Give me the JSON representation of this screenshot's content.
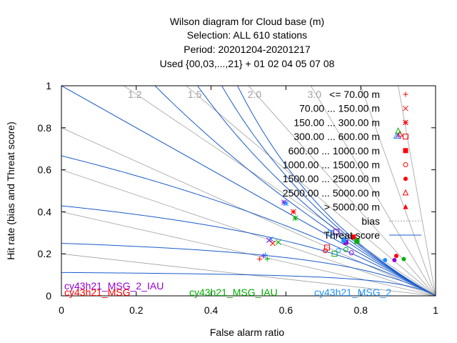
{
  "chart_data": {
    "type": "scatter",
    "title_lines": [
      "Wilson diagram  for Cloud base (m)",
      "Selection: ALL     610 stations",
      "Period: 20201204-20201217",
      "Used {00,03,...,21} + 01 02 04 05 07 08"
    ],
    "xlabel": "False alarm ratio",
    "ylabel": "Hit rate (bias and Threat score)",
    "xlim": [
      0,
      1
    ],
    "ylim": [
      0,
      1
    ],
    "xticks": [
      "0",
      "0.2",
      "0.4",
      "0.6",
      "0.8",
      "1"
    ],
    "yticks": [
      "0",
      "0.2",
      "0.4",
      "0.6",
      "0.8",
      "1"
    ],
    "bias_lines": [
      1.2,
      1.5,
      2.0,
      3.0
    ],
    "bias_labels": [
      "1.2",
      "1.5",
      "2.0",
      "3.0"
    ],
    "threat_score_lines": [
      0.1,
      0.2,
      0.3,
      0.4,
      0.5,
      0.6,
      0.7,
      0.8,
      0.9
    ],
    "legend": {
      "position": "top-right",
      "entries": [
        "<= 70.00 m",
        "70.00 ... 150.00 m",
        "150.00 ... 300.00 m",
        "300.00 ... 600.00 m",
        "600.00 ... 1000.00 m",
        "1000.00 ... 1500.00 m",
        "1500.00 ... 2500.00 m",
        "2500.00 ... 5000.00 m",
        "> 5000.00 m",
        "bias",
        "Threat score"
      ]
    },
    "series": [
      {
        "name": "cy43h21_MSG_2_IAU",
        "color": "#9400d3",
        "points": [
          {
            "x": 0.54,
            "y": 0.19
          },
          {
            "x": 0.555,
            "y": 0.265
          },
          {
            "x": 0.595,
            "y": 0.445
          },
          {
            "x": 0.735,
            "y": 0.305
          },
          {
            "x": 0.76,
            "y": 0.255
          },
          {
            "x": 0.775,
            "y": 0.205
          },
          {
            "x": 0.89,
            "y": 0.17
          },
          {
            "x": 0.9,
            "y": 0.76
          }
        ]
      },
      {
        "name": "cy43h21_MSG",
        "color": "#ff0000",
        "points": [
          {
            "x": 0.53,
            "y": 0.175
          },
          {
            "x": 0.565,
            "y": 0.25
          },
          {
            "x": 0.62,
            "y": 0.4
          },
          {
            "x": 0.71,
            "y": 0.23
          },
          {
            "x": 0.78,
            "y": 0.28
          },
          {
            "x": 0.705,
            "y": 0.215
          },
          {
            "x": 0.895,
            "y": 0.19
          },
          {
            "x": 0.905,
            "y": 0.77
          }
        ]
      },
      {
        "name": "cy43h21_MSG_IAU",
        "color": "#00b000",
        "points": [
          {
            "x": 0.55,
            "y": 0.175
          },
          {
            "x": 0.58,
            "y": 0.255
          },
          {
            "x": 0.625,
            "y": 0.37
          },
          {
            "x": 0.73,
            "y": 0.2
          },
          {
            "x": 0.79,
            "y": 0.26
          },
          {
            "x": 0.76,
            "y": 0.22
          },
          {
            "x": 0.915,
            "y": 0.175
          },
          {
            "x": 0.9,
            "y": 0.785
          }
        ]
      },
      {
        "name": "cy43h21_MSG_2",
        "color": "#1e90ff",
        "points": [
          {
            "x": 0.545,
            "y": 0.195
          },
          {
            "x": 0.56,
            "y": 0.27
          },
          {
            "x": 0.6,
            "y": 0.44
          },
          {
            "x": 0.72,
            "y": 0.3
          },
          {
            "x": 0.755,
            "y": 0.265
          },
          {
            "x": 0.74,
            "y": 0.215
          },
          {
            "x": 0.865,
            "y": 0.17
          },
          {
            "x": 0.895,
            "y": 0.76
          }
        ]
      }
    ]
  },
  "colors": {
    "bias_line": "#a0a0a0",
    "threat_line": "#1a5ccc",
    "legend_marker": "#ff0000"
  }
}
